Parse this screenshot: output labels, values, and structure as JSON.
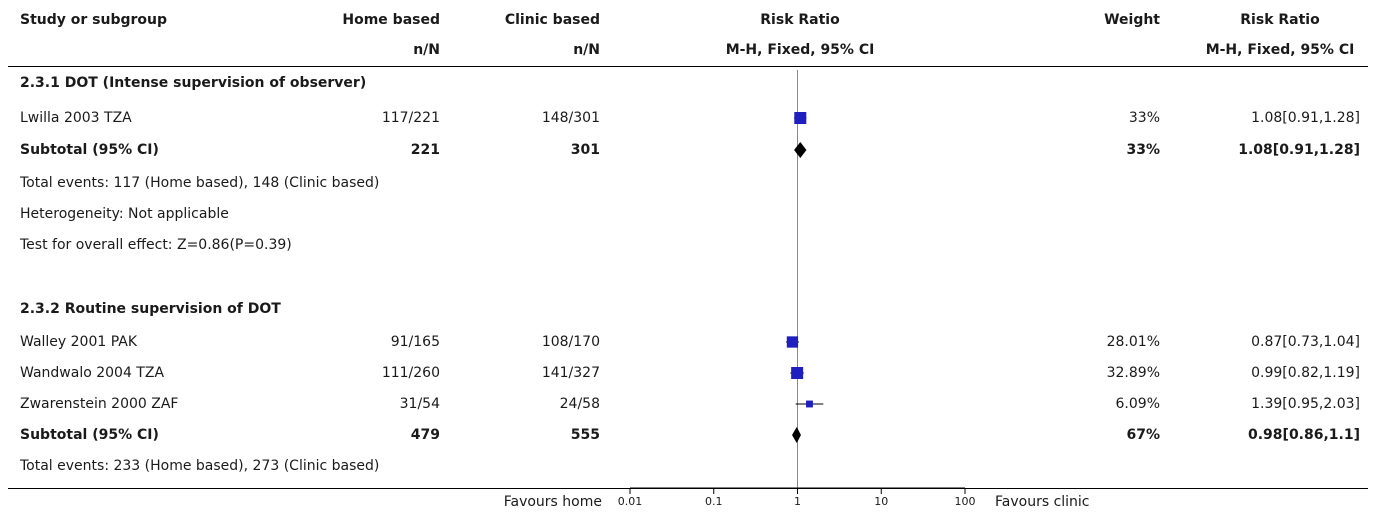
{
  "header": {
    "study": "Study or subgroup",
    "home": "Home based",
    "clinic": "Clinic based",
    "rr": "Risk Ratio",
    "weight": "Weight",
    "rr2": "Risk Ratio",
    "nN_home": "n/N",
    "nN_clinic": "n/N",
    "method": "M-H, Fixed, 95% CI",
    "method2": "M-H, Fixed, 95% CI"
  },
  "groups": [
    {
      "title": "2.3.1 DOT (Intense supervision of observer)",
      "subtotal": {
        "label": "Subtotal (95% CI)",
        "home": "221",
        "clinic": "301",
        "weight": "33%",
        "ci": "1.08[0.91,1.28]"
      },
      "notes": [
        "Total events: 117 (Home based), 148 (Clinic based)",
        "Heterogeneity: Not applicable",
        "Test for overall effect: Z=0.86(P=0.39)"
      ]
    },
    {
      "title": "2.3.2 Routine supervision of DOT",
      "subtotal": {
        "label": "Subtotal (95% CI)",
        "home": "479",
        "clinic": "555",
        "weight": "67%",
        "ci": "0.98[0.86,1.1]"
      },
      "notes": [
        "Total events: 233 (Home based), 273 (Clinic based)"
      ]
    }
  ],
  "studies": [
    {
      "name": "Lwilla 2003 TZA",
      "home": "117/221",
      "clinic": "148/301",
      "weight": "33%",
      "ci": "1.08[0.91,1.28]"
    },
    {
      "name": "Walley 2001 PAK",
      "home": "91/165",
      "clinic": "108/170",
      "weight": "28.01%",
      "ci": "0.87[0.73,1.04]"
    },
    {
      "name": "Wandwalo 2004 TZA",
      "home": "111/260",
      "clinic": "141/327",
      "weight": "32.89%",
      "ci": "0.99[0.82,1.19]"
    },
    {
      "name": "Zwarenstein 2000 ZAF",
      "home": "31/54",
      "clinic": "24/58",
      "weight": "6.09%",
      "ci": "1.39[0.95,2.03]"
    }
  ],
  "footer": {
    "favours_left": "Favours home",
    "favours_right": "Favours clinic"
  },
  "chart_data": {
    "type": "forest",
    "xscale": "log",
    "xlim": [
      0.01,
      100
    ],
    "xticks": [
      "0.01",
      "0.1",
      "1",
      "10",
      "100"
    ],
    "null_line": 1,
    "studies": [
      {
        "name": "Lwilla 2003 TZA",
        "rr": 1.08,
        "lo": 0.91,
        "hi": 1.28,
        "weight": 33
      },
      {
        "name": "Walley 2001 PAK",
        "rr": 0.87,
        "lo": 0.73,
        "hi": 1.04,
        "weight": 28.01
      },
      {
        "name": "Wandwalo 2004 TZA",
        "rr": 0.99,
        "lo": 0.82,
        "hi": 1.19,
        "weight": 32.89
      },
      {
        "name": "Zwarenstein 2000 ZAF",
        "rr": 1.39,
        "lo": 0.95,
        "hi": 2.03,
        "weight": 6.09
      }
    ],
    "subtotals": [
      {
        "label": "Subtotal 2.3.1",
        "rr": 1.08,
        "lo": 0.91,
        "hi": 1.28
      },
      {
        "label": "Subtotal 2.3.2",
        "rr": 0.98,
        "lo": 0.86,
        "hi": 1.1
      }
    ],
    "colors": {
      "square": "#1f1fbf",
      "diamond": "#000000",
      "line": "#000000"
    }
  }
}
